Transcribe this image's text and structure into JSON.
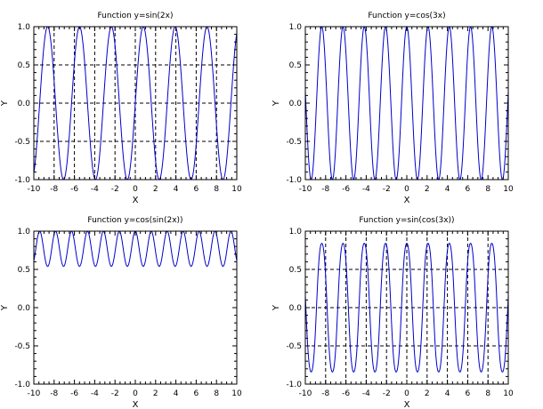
{
  "chart_data": [
    {
      "type": "line",
      "title": "Function y=sin(2x)",
      "xlabel": "X",
      "ylabel": "Y",
      "xlim": [
        -10,
        10
      ],
      "ylim": [
        -1.0,
        1.0
      ],
      "xticks": [
        -10,
        -8,
        -6,
        -4,
        -2,
        0,
        2,
        4,
        6,
        8,
        10
      ],
      "yticks": [
        "-1.0",
        "-0.5",
        "0.0",
        "0.5",
        "1.0"
      ],
      "grid": true,
      "line_color": "#0000cc",
      "series": [
        {
          "function": "sin(2x)",
          "x_range": [
            -10,
            10
          ]
        }
      ]
    },
    {
      "type": "line",
      "title": "Function y=cos(3x)",
      "xlabel": "X",
      "ylabel": "Y",
      "xlim": [
        -10,
        10
      ],
      "ylim": [
        -1.0,
        1.0
      ],
      "xticks": [
        -10,
        -8,
        -6,
        -4,
        -2,
        0,
        2,
        4,
        6,
        8,
        10
      ],
      "yticks": [
        "-1.0",
        "-0.5",
        "0.0",
        "0.5",
        "1.0"
      ],
      "grid": false,
      "line_color": "#0000cc",
      "series": [
        {
          "function": "cos(3x)",
          "x_range": [
            -10,
            10
          ]
        }
      ]
    },
    {
      "type": "line",
      "title": "Function y=cos(sin(2x))",
      "xlabel": "X",
      "ylabel": "Y",
      "xlim": [
        -10,
        10
      ],
      "ylim": [
        -1.0,
        1.0
      ],
      "xticks": [
        -10,
        -8,
        -6,
        -4,
        -2,
        0,
        2,
        4,
        6,
        8,
        10
      ],
      "yticks": [
        "-1.0",
        "-0.5",
        "0.0",
        "0.5",
        "1.0"
      ],
      "grid": false,
      "line_color": "#0000cc",
      "series": [
        {
          "function": "cos(sin(2x))",
          "x_range": [
            -10,
            10
          ]
        }
      ]
    },
    {
      "type": "line",
      "title": "Function y=sin(cos(3x))",
      "xlabel": "X",
      "ylabel": "Y",
      "xlim": [
        -10,
        10
      ],
      "ylim": [
        -1.0,
        1.0
      ],
      "xticks": [
        -10,
        -8,
        -6,
        -4,
        -2,
        0,
        2,
        4,
        6,
        8,
        10
      ],
      "yticks": [
        "-1.0",
        "-0.5",
        "0.0",
        "0.5",
        "1.0"
      ],
      "grid": true,
      "line_color": "#0000cc",
      "series": [
        {
          "function": "sin(cos(3x))",
          "x_range": [
            -10,
            10
          ]
        }
      ]
    }
  ]
}
